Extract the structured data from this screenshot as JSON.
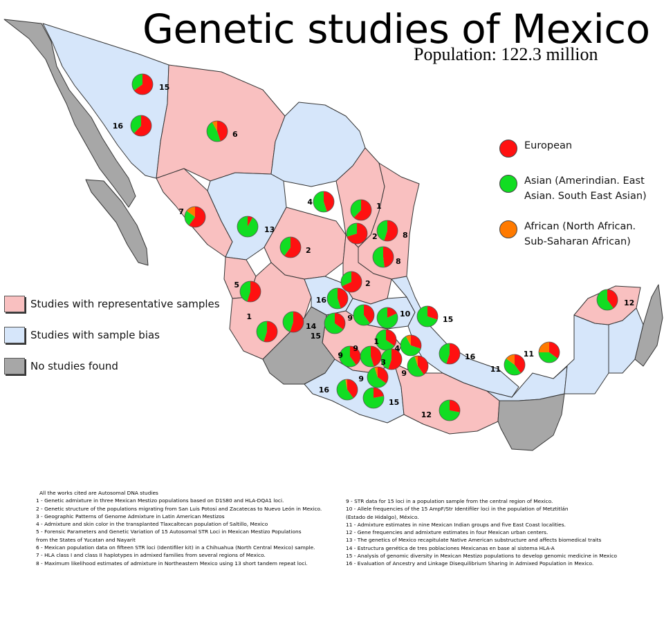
{
  "title": "Genetic studies of Mexico",
  "subtitle": "Population: 122.3 million",
  "colors": {
    "representative": "#f9c0c0",
    "bias": "#d6e6fa",
    "none": "#a7a7a7",
    "european": "#ff1111",
    "asian": "#11dd22",
    "african": "#ff7a00"
  },
  "legend_regions": [
    {
      "label": "Studies with representative samples",
      "color_key": "representative"
    },
    {
      "label": "Studies with sample bias",
      "color_key": "bias"
    },
    {
      "label": "No studies found",
      "color_key": "none"
    }
  ],
  "legend_ancestry": [
    {
      "lines": [
        "European"
      ],
      "color_key": "european"
    },
    {
      "lines": [
        "Asian (Amerindian. East",
        "Asian. South East Asian)"
      ],
      "color_key": "asian"
    },
    {
      "lines": [
        "African (North African.",
        "Sub-Saharan African)"
      ],
      "color_key": "african"
    }
  ],
  "pies": [
    {
      "study": "15",
      "european": 0.65,
      "asian": 0.35,
      "african": 0
    },
    {
      "study": "16",
      "european": 0.62,
      "asian": 0.38,
      "african": 0
    },
    {
      "study": "6",
      "european": 0.45,
      "asian": 0.47,
      "african": 0.08
    },
    {
      "study": "7",
      "european": 0.6,
      "asian": 0.25,
      "african": 0.15
    },
    {
      "study": "13",
      "european": 0.08,
      "asian": 0.92,
      "african": 0
    },
    {
      "study": "4",
      "european": 0.45,
      "asian": 0.55,
      "african": 0
    },
    {
      "study": "1",
      "european": 0.62,
      "asian": 0.38,
      "african": 0
    },
    {
      "study": "2",
      "european": 0.7,
      "asian": 0.3,
      "african": 0
    },
    {
      "study": "8",
      "european": 0.55,
      "asian": 0.45,
      "african": 0
    },
    {
      "study": "2",
      "european": 0.6,
      "asian": 0.4,
      "african": 0
    },
    {
      "study": "8",
      "european": 0.48,
      "asian": 0.52,
      "african": 0
    },
    {
      "study": "2",
      "european": 0.68,
      "asian": 0.32,
      "african": 0
    },
    {
      "study": "5",
      "european": 0.55,
      "asian": 0.45,
      "african": 0
    },
    {
      "study": "16",
      "european": 0.45,
      "asian": 0.55,
      "african": 0
    },
    {
      "study": "1",
      "european": 0.55,
      "asian": 0.45,
      "african": 0
    },
    {
      "study": "14",
      "european": 0.55,
      "asian": 0.45,
      "african": 0
    },
    {
      "study": "15",
      "european": 0.35,
      "asian": 0.65,
      "african": 0
    },
    {
      "study": "9",
      "european": 0.4,
      "asian": 0.6,
      "african": 0
    },
    {
      "study": "10",
      "european": 0.18,
      "asian": 0.82,
      "african": 0
    },
    {
      "study": "15",
      "european": 0.3,
      "asian": 0.7,
      "african": 0
    },
    {
      "study": "1",
      "european": 0.35,
      "asian": 0.65,
      "african": 0
    },
    {
      "study": "4",
      "european": 0.3,
      "asian": 0.62,
      "african": 0.08
    },
    {
      "study": "9",
      "european": 0.4,
      "asian": 0.6,
      "african": 0
    },
    {
      "study": "9",
      "european": 0.45,
      "asian": 0.55,
      "african": 0
    },
    {
      "study": "3",
      "european": 0.55,
      "asian": 0.45,
      "african": 0
    },
    {
      "study": "9",
      "european": 0.4,
      "asian": 0.55,
      "african": 0.05
    },
    {
      "study": "9",
      "european": 0.35,
      "asian": 0.6,
      "african": 0.05
    },
    {
      "study": "16",
      "european": 0.4,
      "asian": 0.57,
      "african": 0.03
    },
    {
      "study": "16",
      "european": 0.55,
      "asian": 0.45,
      "african": 0
    },
    {
      "study": "15",
      "european": 0.22,
      "asian": 0.78,
      "african": 0
    },
    {
      "study": "12",
      "european": 0.28,
      "asian": 0.72,
      "african": 0
    },
    {
      "study": "11",
      "european": 0.4,
      "asian": 0.45,
      "african": 0.15
    },
    {
      "study": "11",
      "european": 0.35,
      "asian": 0.4,
      "african": 0.25
    },
    {
      "study": "12",
      "european": 0.4,
      "asian": 0.6,
      "african": 0
    }
  ],
  "references_heading": "All the works cited are Autosomal DNA studies",
  "references_left": [
    "1 - Genetic admixture in three Mexican Mestizo populations based on D1S80 and HLA-DQA1 loci.",
    "2 - Genetic structure of the populations migrating from San Luis Potosi and Zacatecas to Nuevo León in Mexico.",
    "3 - Geographic Patterns of Genome Admixture in Latin American Mestizos",
    "4 - Admixture and skin color in the transplanted Tlaxcaltecan population of Saltillo, Mexico",
    "5 - Forensic Parameters and Genetic Variation of 15 Autosomal STR Loci in Mexican Mestizo Populations from the States of Yucatan and Nayarit",
    "6 - Mexican population data on fifteen STR loci (Identifiler kit) in a Chihuahua (North Central Mexico) sample.",
    "7 - HLA class I and class II haplotypes in admixed families from several regions of Mexico.",
    "8 - Maximum likelihood estimates of admixture in Northeastern Mexico using 13 short tandem repeat loci."
  ],
  "references_right": [
    "9 - STR data for 15 loci in a population sample from the central region of Mexico.",
    "10 - Allele frequencies of the 15 AmpF/Str Identifiler loci in the population of Metztitlán (Estado de Hidalgo), México.",
    "11 - Admixture estimates in nine Mexican Indian groups and five East Coast localities.",
    "12 - Gene frequencies and admixture estimates in four Mexican urban centers.",
    "13 - The genetics of Mexico recapitulate Native American substructure and affects biomedical traits",
    "14 - Estructura genética de tres poblaciones Mexicanas en base al sistema HLA-A",
    "15 - Analysis of genomic diversity in Mexican Mestizo populations to develop genomic medicine in Mexico",
    "16 - Evaluation of Ancestry and Linkage Disequilibrium Sharing in Admixed Population in Mexico."
  ]
}
